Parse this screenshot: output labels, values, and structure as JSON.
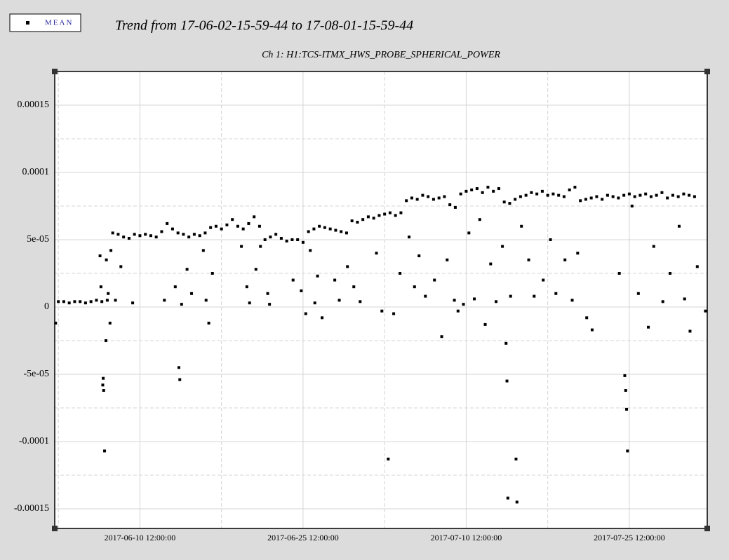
{
  "chart_data": {
    "type": "scatter",
    "title": "Trend from 17-06-02-15-59-44 to 17-08-01-15-59-44",
    "subtitle": "Ch 1: H1:TCS-ITMX_HWS_PROBE_SPHERICAL_POWER",
    "legend": "top-left",
    "grid": true,
    "xlim": [
      "2017-06-02 15:59:44",
      "2017-08-01 15:59:44"
    ],
    "xticks": [
      "2017-06-10 12:00:00",
      "2017-06-25 12:00:00",
      "2017-07-10 12:00:00",
      "2017-07-25 12:00:00"
    ],
    "minor_xticks": [
      "2017-06-03 00:00:00",
      "2017-06-18 00:00:00",
      "2017-07-03 00:00:00",
      "2017-07-18 00:00:00"
    ],
    "ylim": [
      -0.0001646,
      0.000175
    ],
    "yticks": [
      -0.00015,
      -0.0001,
      {
        "value": -5e-05,
        "label": "-5e-05"
      },
      0,
      {
        "value": 5e-05,
        "label": "5e-05"
      },
      0.0001,
      0.00015
    ],
    "minor_yticks": [
      -0.000125,
      -7.5e-05,
      -2.5e-05,
      2.5e-05,
      7.5e-05,
      0.000125
    ],
    "series": [
      {
        "name": "MEAN",
        "color": "#000000",
        "x": [
          "2017-06-03 00:00:00",
          "2017-06-03 12:00:00",
          "2017-06-04 00:00:00",
          "2017-06-04 12:00:00",
          "2017-06-05 00:00:00",
          "2017-06-05 12:00:00",
          "2017-06-06 00:00:00",
          "2017-06-06 12:00:00",
          "2017-06-07 00:00:00",
          "2017-06-07 12:00:00",
          "2017-06-08 00:00:00",
          "2017-06-08 12:00:00",
          "2017-06-09 00:00:00",
          "2017-06-09 12:00:00",
          "2017-06-10 00:00:00",
          "2017-06-10 12:00:00",
          "2017-06-11 00:00:00",
          "2017-06-11 12:00:00",
          "2017-06-12 00:00:00",
          "2017-06-12 12:00:00",
          "2017-06-13 00:00:00",
          "2017-06-13 12:00:00",
          "2017-06-14 00:00:00",
          "2017-06-14 12:00:00",
          "2017-06-15 00:00:00",
          "2017-06-15 12:00:00",
          "2017-06-16 00:00:00",
          "2017-06-16 12:00:00",
          "2017-06-17 00:00:00",
          "2017-06-17 12:00:00",
          "2017-06-18 00:00:00",
          "2017-06-18 12:00:00",
          "2017-06-19 00:00:00",
          "2017-06-19 12:00:00",
          "2017-06-20 00:00:00",
          "2017-06-20 12:00:00",
          "2017-06-21 00:00:00",
          "2017-06-21 12:00:00",
          "2017-06-22 00:00:00",
          "2017-06-22 12:00:00",
          "2017-06-23 00:00:00",
          "2017-06-23 12:00:00",
          "2017-06-24 00:00:00",
          "2017-06-24 12:00:00",
          "2017-06-25 00:00:00",
          "2017-06-25 12:00:00",
          "2017-06-26 00:00:00",
          "2017-06-26 12:00:00",
          "2017-06-27 00:00:00",
          "2017-06-27 12:00:00",
          "2017-06-28 00:00:00",
          "2017-06-28 12:00:00",
          "2017-06-29 00:00:00",
          "2017-06-29 12:00:00",
          "2017-06-30 00:00:00",
          "2017-06-30 12:00:00",
          "2017-07-01 00:00:00",
          "2017-07-01 12:00:00",
          "2017-07-02 00:00:00",
          "2017-07-02 12:00:00",
          "2017-07-03 00:00:00",
          "2017-07-03 12:00:00",
          "2017-07-04 00:00:00",
          "2017-07-04 12:00:00",
          "2017-07-05 00:00:00",
          "2017-07-05 12:00:00",
          "2017-07-06 00:00:00",
          "2017-07-06 12:00:00",
          "2017-07-07 00:00:00",
          "2017-07-07 12:00:00",
          "2017-07-08 00:00:00",
          "2017-07-08 12:00:00",
          "2017-07-09 00:00:00",
          "2017-07-09 12:00:00",
          "2017-07-10 00:00:00",
          "2017-07-10 12:00:00",
          "2017-07-11 00:00:00",
          "2017-07-11 12:00:00",
          "2017-07-12 00:00:00",
          "2017-07-12 12:00:00",
          "2017-07-13 00:00:00",
          "2017-07-13 12:00:00",
          "2017-07-14 00:00:00",
          "2017-07-14 12:00:00",
          "2017-07-15 00:00:00",
          "2017-07-15 12:00:00",
          "2017-07-16 00:00:00",
          "2017-07-16 12:00:00",
          "2017-07-17 00:00:00",
          "2017-07-17 12:00:00",
          "2017-07-18 00:00:00",
          "2017-07-18 12:00:00",
          "2017-07-19 00:00:00",
          "2017-07-19 12:00:00",
          "2017-07-20 00:00:00",
          "2017-07-20 12:00:00",
          "2017-07-21 00:00:00",
          "2017-07-21 12:00:00",
          "2017-07-22 00:00:00",
          "2017-07-22 12:00:00",
          "2017-07-23 00:00:00",
          "2017-07-23 12:00:00",
          "2017-07-24 00:00:00",
          "2017-07-24 12:00:00",
          "2017-07-25 00:00:00",
          "2017-07-25 12:00:00",
          "2017-07-26 00:00:00",
          "2017-07-26 12:00:00",
          "2017-07-27 00:00:00",
          "2017-07-27 12:00:00",
          "2017-07-28 00:00:00",
          "2017-07-28 12:00:00",
          "2017-07-29 00:00:00",
          "2017-07-29 12:00:00",
          "2017-07-30 00:00:00",
          "2017-07-30 12:00:00",
          "2017-07-31 00:00:00",
          "2017-07-31 12:00:00",
          "2017-06-02 18:00:00",
          "2017-06-06 20:00:00",
          "2017-06-06 22:00:00",
          "2017-06-07 02:00:00",
          "2017-06-07 03:00:00",
          "2017-06-07 04:00:00",
          "2017-06-07 06:00:00",
          "2017-06-07 09:00:00",
          "2017-06-07 10:00:00",
          "2017-06-07 14:00:00",
          "2017-06-07 18:00:00",
          "2017-06-07 20:00:00",
          "2017-06-08 06:00:00",
          "2017-06-08 18:00:00",
          "2017-06-09 20:00:00",
          "2017-06-12 18:00:00",
          "2017-06-13 18:00:00",
          "2017-06-14 02:00:00",
          "2017-06-14 04:00:00",
          "2017-06-14 08:00:00",
          "2017-06-14 20:00:00",
          "2017-06-15 06:00:00",
          "2017-06-16 08:00:00",
          "2017-06-16 14:00:00",
          "2017-06-16 20:00:00",
          "2017-06-17 04:00:00",
          "2017-06-19 20:00:00",
          "2017-06-20 08:00:00",
          "2017-06-20 14:00:00",
          "2017-06-21 04:00:00",
          "2017-06-21 14:00:00",
          "2017-06-22 06:00:00",
          "2017-06-22 10:00:00",
          "2017-06-24 14:00:00",
          "2017-06-25 08:00:00",
          "2017-06-25 18:00:00",
          "2017-06-26 04:00:00",
          "2017-06-26 14:00:00",
          "2017-06-26 20:00:00",
          "2017-06-27 06:00:00",
          "2017-06-28 10:00:00",
          "2017-06-28 20:00:00",
          "2017-06-29 14:00:00",
          "2017-06-30 04:00:00",
          "2017-06-30 18:00:00",
          "2017-07-02 06:00:00",
          "2017-07-02 18:00:00",
          "2017-07-03 08:00:00",
          "2017-07-03 20:00:00",
          "2017-07-04 10:00:00",
          "2017-07-05 06:00:00",
          "2017-07-05 18:00:00",
          "2017-07-06 04:00:00",
          "2017-07-06 18:00:00",
          "2017-07-07 14:00:00",
          "2017-07-08 06:00:00",
          "2017-07-08 18:00:00",
          "2017-07-09 10:00:00",
          "2017-07-09 18:00:00",
          "2017-07-10 06:00:00",
          "2017-07-10 18:00:00",
          "2017-07-11 06:00:00",
          "2017-07-11 18:00:00",
          "2017-07-12 06:00:00",
          "2017-07-12 18:00:00",
          "2017-07-13 06:00:00",
          "2017-07-13 20:00:00",
          "2017-07-14 04:00:00",
          "2017-07-14 06:00:00",
          "2017-07-14 08:00:00",
          "2017-07-14 14:00:00",
          "2017-07-15 02:00:00",
          "2017-07-15 04:00:00",
          "2017-07-15 14:00:00",
          "2017-07-16 06:00:00",
          "2017-07-16 18:00:00",
          "2017-07-17 14:00:00",
          "2017-07-18 06:00:00",
          "2017-07-18 18:00:00",
          "2017-07-19 14:00:00",
          "2017-07-20 06:00:00",
          "2017-07-20 18:00:00",
          "2017-07-21 14:00:00",
          "2017-07-22 02:00:00",
          "2017-07-24 14:00:00",
          "2017-07-25 02:00:00",
          "2017-07-25 04:00:00",
          "2017-07-25 06:00:00",
          "2017-07-25 08:00:00",
          "2017-07-25 18:00:00",
          "2017-07-26 08:00:00",
          "2017-07-27 06:00:00",
          "2017-07-27 18:00:00",
          "2017-07-28 14:00:00",
          "2017-07-29 06:00:00",
          "2017-07-30 02:00:00",
          "2017-07-30 14:00:00",
          "2017-07-31 02:00:00",
          "2017-07-31 18:00:00",
          "2017-08-01 12:00:00"
        ],
        "values": [
          4e-06,
          4e-06,
          3e-06,
          4e-06,
          4e-06,
          3e-06,
          4e-06,
          5e-06,
          4e-06,
          5e-06,
          5.5e-05,
          5.4e-05,
          5.2e-05,
          5.1e-05,
          5.4e-05,
          5.3e-05,
          5.4e-05,
          5.3e-05,
          5.2e-05,
          5.6e-05,
          6.2e-05,
          5.8e-05,
          5.5e-05,
          5.4e-05,
          5.2e-05,
          5.4e-05,
          5.3e-05,
          5.5e-05,
          5.9e-05,
          6e-05,
          5.8e-05,
          6.1e-05,
          6.5e-05,
          6e-05,
          5.8e-05,
          6.2e-05,
          6.7e-05,
          6e-05,
          5e-05,
          5.2e-05,
          5.4e-05,
          5.1e-05,
          4.9e-05,
          5e-05,
          5e-05,
          4.8e-05,
          5.6e-05,
          5.8e-05,
          6e-05,
          5.9e-05,
          5.8e-05,
          5.7e-05,
          5.6e-05,
          5.5e-05,
          6.4e-05,
          6.3e-05,
          6.5e-05,
          6.7e-05,
          6.6e-05,
          6.8e-05,
          6.9e-05,
          7e-05,
          6.8e-05,
          7e-05,
          7.9e-05,
          8.1e-05,
          8e-05,
          8.3e-05,
          8.2e-05,
          8e-05,
          8.1e-05,
          8.2e-05,
          7.6e-05,
          7.4e-05,
          8.4e-05,
          8.6e-05,
          8.7e-05,
          8.8e-05,
          8.5e-05,
          8.9e-05,
          8.6e-05,
          8.8e-05,
          7.8e-05,
          7.7e-05,
          8e-05,
          8.2e-05,
          8.3e-05,
          8.5e-05,
          8.4e-05,
          8.6e-05,
          8.3e-05,
          8.4e-05,
          8.3e-05,
          8.2e-05,
          8.7e-05,
          8.9e-05,
          7.9e-05,
          8e-05,
          8.1e-05,
          8.2e-05,
          8e-05,
          8.3e-05,
          8.2e-05,
          8.1e-05,
          8.3e-05,
          8.4e-05,
          8.2e-05,
          8.3e-05,
          8.4e-05,
          8.2e-05,
          8.3e-05,
          8.5e-05,
          8.1e-05,
          8.3e-05,
          8.2e-05,
          8.4e-05,
          8.3e-05,
          8.2e-05,
          -1.2e-05,
          3.8e-05,
          1.5e-05,
          -5.8e-05,
          -5.3e-05,
          -6.2e-05,
          -0.000107,
          -2.5e-05,
          3.5e-05,
          1e-05,
          -1.2e-05,
          4.2e-05,
          5e-06,
          3e-05,
          3e-06,
          5e-06,
          1.5e-05,
          -4.5e-05,
          -5.4e-05,
          2e-06,
          2.8e-05,
          1e-05,
          4.2e-05,
          5e-06,
          -1.2e-05,
          2.5e-05,
          4.5e-05,
          1.5e-05,
          3e-06,
          2.8e-05,
          4.5e-05,
          1e-05,
          2e-06,
          2e-05,
          1.2e-05,
          -5e-06,
          4.2e-05,
          3e-06,
          2.3e-05,
          -8e-06,
          2e-05,
          5e-06,
          3e-05,
          1.5e-05,
          4e-06,
          4e-05,
          -3e-06,
          -0.000113,
          -5e-06,
          2.5e-05,
          5.2e-05,
          1.5e-05,
          3.8e-05,
          8e-06,
          2e-05,
          -2.2e-05,
          3.5e-05,
          5e-06,
          -3e-06,
          2e-06,
          5.5e-05,
          6e-06,
          6.5e-05,
          -1.3e-05,
          3.2e-05,
          4e-06,
          4.5e-05,
          -2.7e-05,
          -5.5e-05,
          -0.000142,
          8e-06,
          -0.000113,
          -0.000145,
          6e-05,
          3.5e-05,
          8e-06,
          2e-05,
          5e-05,
          1e-05,
          3.5e-05,
          5e-06,
          4e-05,
          -8e-06,
          -1.7e-05,
          2.5e-05,
          -5.1e-05,
          -6.2e-05,
          -7.6e-05,
          -0.000107,
          7.5e-05,
          1e-05,
          -1.5e-05,
          4.5e-05,
          4e-06,
          2.5e-05,
          6e-05,
          6e-06,
          -1.8e-05,
          3e-05,
          -3e-06
        ]
      }
    ]
  }
}
